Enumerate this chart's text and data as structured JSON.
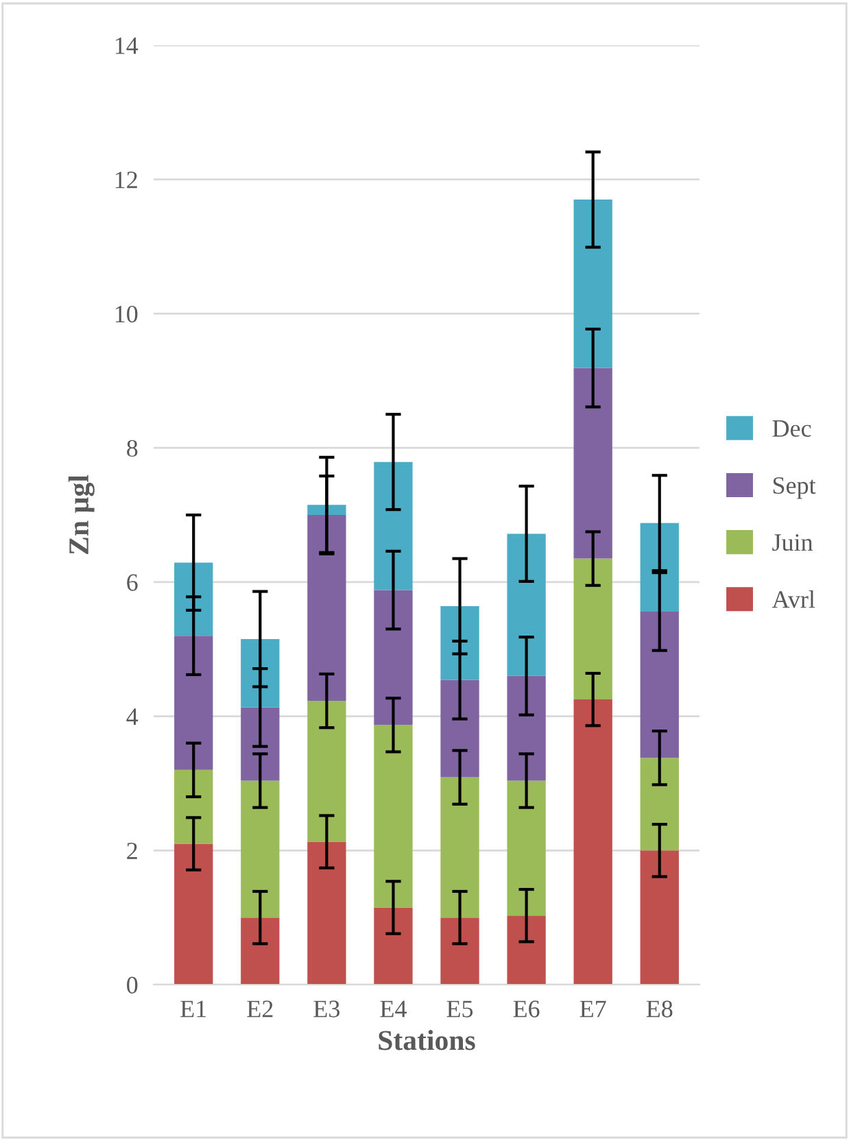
{
  "chart_data": {
    "type": "bar",
    "stacked": true,
    "xlabel": "Stations",
    "ylabel": "Zn µgl",
    "categories": [
      "E1",
      "E2",
      "E3",
      "E4",
      "E5",
      "E6",
      "E7",
      "E8"
    ],
    "series": [
      {
        "name": "Avrl",
        "color": "#c0504d",
        "values": [
          2.1,
          1.0,
          2.13,
          1.15,
          1.0,
          1.03,
          4.25,
          2.0
        ],
        "errors": [
          0.39,
          0.39,
          0.39,
          0.39,
          0.39,
          0.39,
          0.39,
          0.39
        ]
      },
      {
        "name": "Juin",
        "color": "#9bbb59",
        "values": [
          1.1,
          2.04,
          2.1,
          2.72,
          2.09,
          2.01,
          2.1,
          1.38
        ],
        "errors": [
          0.4,
          0.4,
          0.4,
          0.4,
          0.4,
          0.4,
          0.4,
          0.4
        ]
      },
      {
        "name": "Sept",
        "color": "#8064a2",
        "values": [
          2.0,
          1.09,
          2.77,
          2.01,
          1.45,
          1.56,
          2.84,
          2.18
        ],
        "errors": [
          0.58,
          0.58,
          0.58,
          0.58,
          0.58,
          0.58,
          0.58,
          0.58
        ]
      },
      {
        "name": "Dec",
        "color": "#4bacc6",
        "values": [
          1.09,
          1.02,
          0.15,
          1.91,
          1.1,
          2.12,
          2.51,
          1.32
        ],
        "errors": [
          0.71,
          0.71,
          0.71,
          0.71,
          0.71,
          0.71,
          0.71,
          0.71
        ]
      }
    ],
    "ylim": [
      0,
      14
    ],
    "yticks": [
      0,
      2,
      4,
      6,
      8,
      10,
      12,
      14
    ],
    "grid": "y",
    "legend": "right"
  }
}
